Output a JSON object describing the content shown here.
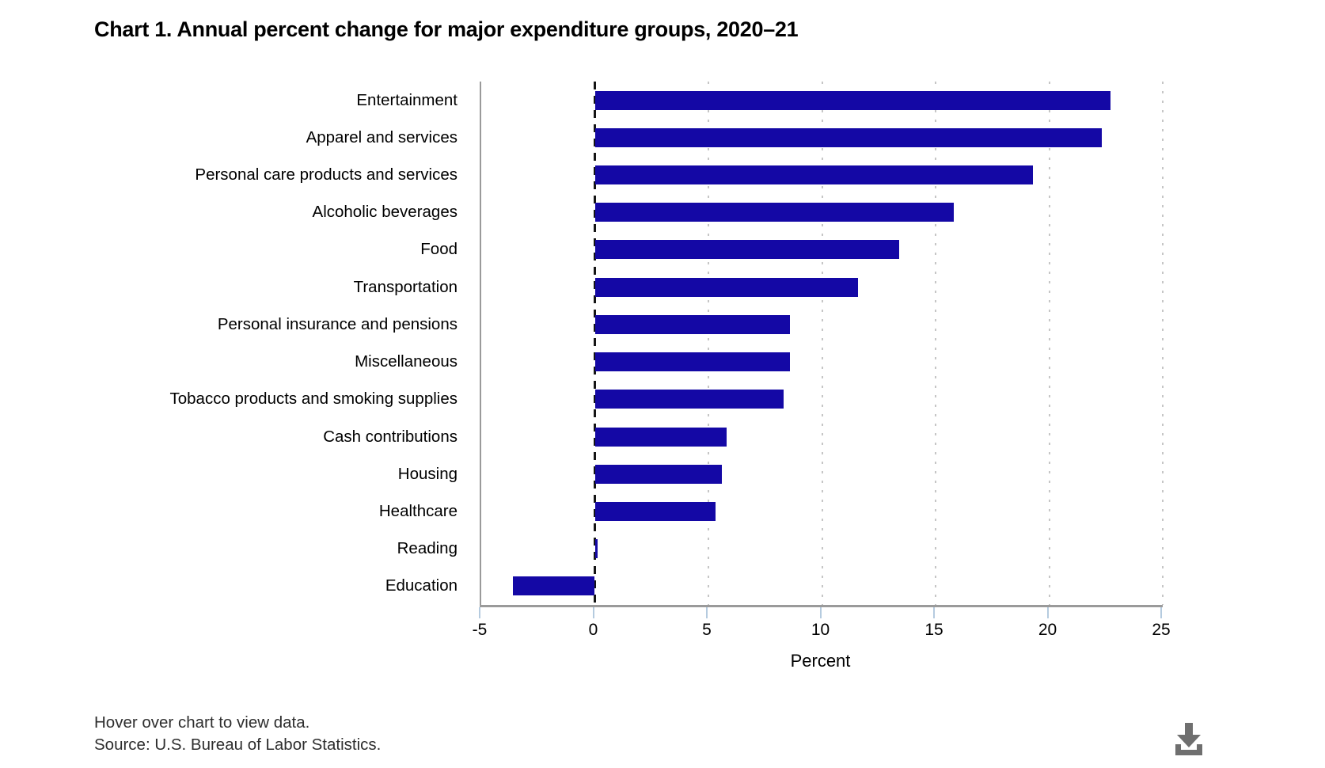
{
  "header": {
    "title": "Chart 1. Annual percent change for major expenditure groups, 2020–21"
  },
  "chart_data": {
    "type": "bar",
    "orientation": "horizontal",
    "title": "Chart 1. Annual percent change for major expenditure groups, 2020–21",
    "categories": [
      "Entertainment",
      "Apparel and services",
      "Personal care products and services",
      "Alcoholic beverages",
      "Food",
      "Transportation",
      "Personal insurance and pensions",
      "Miscellaneous",
      "Tobacco products and smoking supplies",
      "Cash contributions",
      "Housing",
      "Healthcare",
      "Reading",
      "Education"
    ],
    "values": [
      22.7,
      22.3,
      19.3,
      15.8,
      13.4,
      11.6,
      8.6,
      8.6,
      8.3,
      5.8,
      5.6,
      5.3,
      0.1,
      -3.6
    ],
    "xlabel": "Percent",
    "ylabel": "",
    "xlim": [
      -5,
      25
    ],
    "xticks": [
      -5,
      0,
      5,
      10,
      15,
      20,
      25
    ],
    "grid": "vertical dotted gridlines at 5-unit intervals, dashed black line at 0",
    "legend": "none"
  },
  "footer": {
    "hover_note": "Hover over chart to view data.",
    "source": "Source: U.S. Bureau of Labor Statistics."
  },
  "icons": {
    "download": "download-icon"
  },
  "colors": {
    "bar": "#1408A5",
    "axis": "#9a9a9a",
    "tick": "#b5cbdf",
    "grid_dot": "#c6c6c6",
    "zero_line": "#151515",
    "footer_text": "#2e2e2e",
    "download_icon": "#6f6f6f"
  }
}
